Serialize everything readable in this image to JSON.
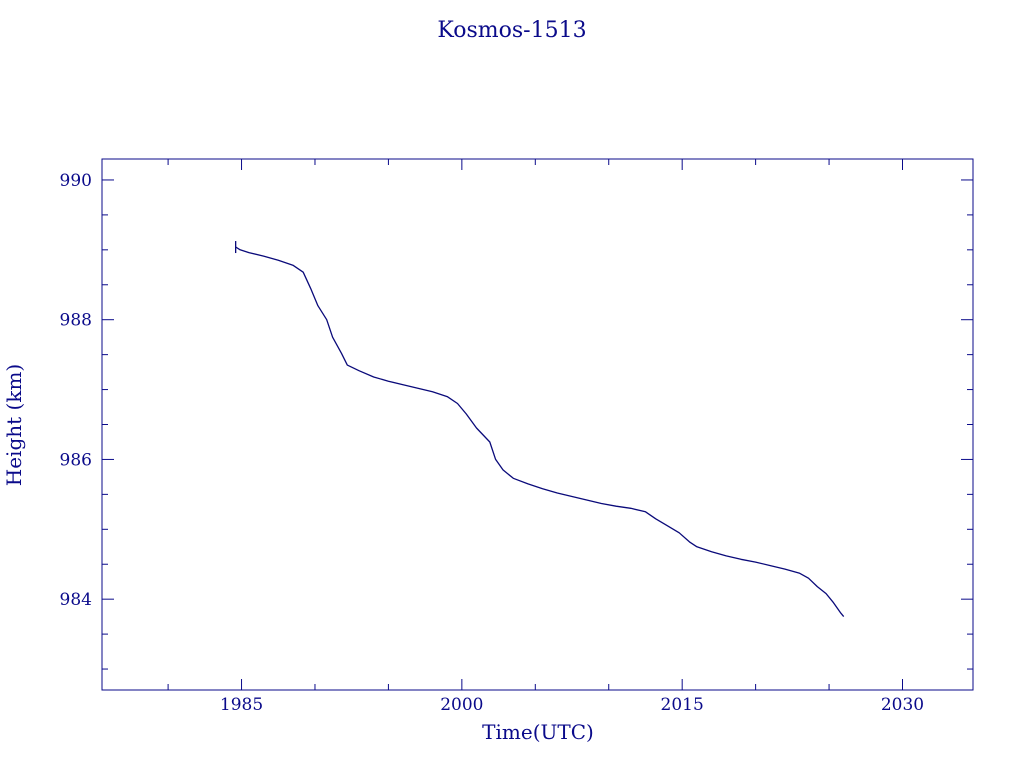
{
  "chart_data": {
    "type": "line",
    "title": "Kosmos-1513",
    "xlabel": "Time(UTC)",
    "ylabel": "Height (km)",
    "xlim": [
      1975.5,
      2034.8
    ],
    "ylim": [
      982.7,
      990.3
    ],
    "x_ticks": [
      1985,
      2000,
      2015,
      2030
    ],
    "y_ticks": [
      984,
      986,
      988,
      990
    ],
    "grid": false,
    "colors": {
      "text": "#0a0a8a",
      "axes": "#0a0a8a",
      "line": "#0a0a7a",
      "background": "#ffffff"
    },
    "series": [
      {
        "values": [
          [
            1984.6,
            989.04
          ],
          [
            1984.9,
            989.0
          ],
          [
            1985.5,
            988.96
          ],
          [
            1986.5,
            988.91
          ],
          [
            1987.5,
            988.85
          ],
          [
            1988.5,
            988.78
          ],
          [
            1989.2,
            988.68
          ],
          [
            1989.7,
            988.45
          ],
          [
            1990.2,
            988.2
          ],
          [
            1990.8,
            988.0
          ],
          [
            1991.2,
            987.75
          ],
          [
            1991.8,
            987.52
          ],
          [
            1992.2,
            987.35
          ],
          [
            1993.0,
            987.27
          ],
          [
            1994.0,
            987.18
          ],
          [
            1995.0,
            987.12
          ],
          [
            1996.0,
            987.07
          ],
          [
            1997.0,
            987.02
          ],
          [
            1998.0,
            986.97
          ],
          [
            1999.0,
            986.9
          ],
          [
            1999.7,
            986.8
          ],
          [
            2000.3,
            986.65
          ],
          [
            2001.0,
            986.45
          ],
          [
            2001.9,
            986.25
          ],
          [
            2002.3,
            986.0
          ],
          [
            2002.8,
            985.85
          ],
          [
            2003.5,
            985.73
          ],
          [
            2004.5,
            985.65
          ],
          [
            2005.5,
            985.58
          ],
          [
            2006.5,
            985.52
          ],
          [
            2007.5,
            985.47
          ],
          [
            2008.5,
            985.42
          ],
          [
            2009.5,
            985.37
          ],
          [
            2010.5,
            985.33
          ],
          [
            2011.5,
            985.3
          ],
          [
            2012.5,
            985.25
          ],
          [
            2013.2,
            985.15
          ],
          [
            2014.0,
            985.05
          ],
          [
            2014.8,
            984.95
          ],
          [
            2015.5,
            984.82
          ],
          [
            2016.0,
            984.75
          ],
          [
            2017.0,
            984.68
          ],
          [
            2018.0,
            984.62
          ],
          [
            2019.0,
            984.57
          ],
          [
            2020.0,
            984.53
          ],
          [
            2021.0,
            984.48
          ],
          [
            2022.0,
            984.43
          ],
          [
            2023.0,
            984.37
          ],
          [
            2023.6,
            984.3
          ],
          [
            2024.2,
            984.18
          ],
          [
            2024.8,
            984.08
          ],
          [
            2025.3,
            983.95
          ],
          [
            2025.8,
            983.8
          ],
          [
            2026.0,
            983.75
          ]
        ]
      }
    ]
  }
}
